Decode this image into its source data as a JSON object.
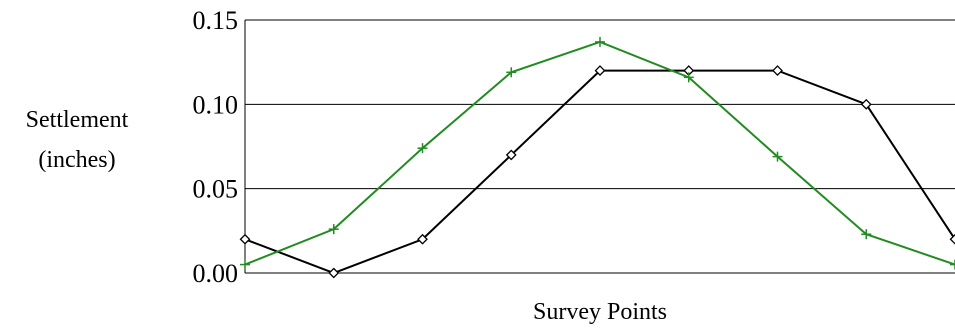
{
  "chart_data": {
    "type": "line",
    "title": "",
    "xlabel": "Survey Points",
    "ylabel_lines": [
      "Settlement",
      "(inches)"
    ],
    "y_ticks": [
      "0.00",
      "0.05",
      "0.10",
      "0.15"
    ],
    "ylim": [
      0,
      0.15
    ],
    "grid": "horizontal",
    "legend": "none",
    "x": [
      1,
      2,
      3,
      4,
      5,
      6,
      7,
      8,
      9
    ],
    "series": [
      {
        "color": "#000000",
        "marker": "diamond",
        "values": [
          0.02,
          0.0,
          0.02,
          0.07,
          0.12,
          0.12,
          0.12,
          0.1,
          0.02
        ]
      },
      {
        "color": "#228B22",
        "marker": "plus",
        "values": [
          0.005,
          0.026,
          0.074,
          0.119,
          0.137,
          0.116,
          0.069,
          0.023,
          0.005
        ]
      }
    ]
  }
}
